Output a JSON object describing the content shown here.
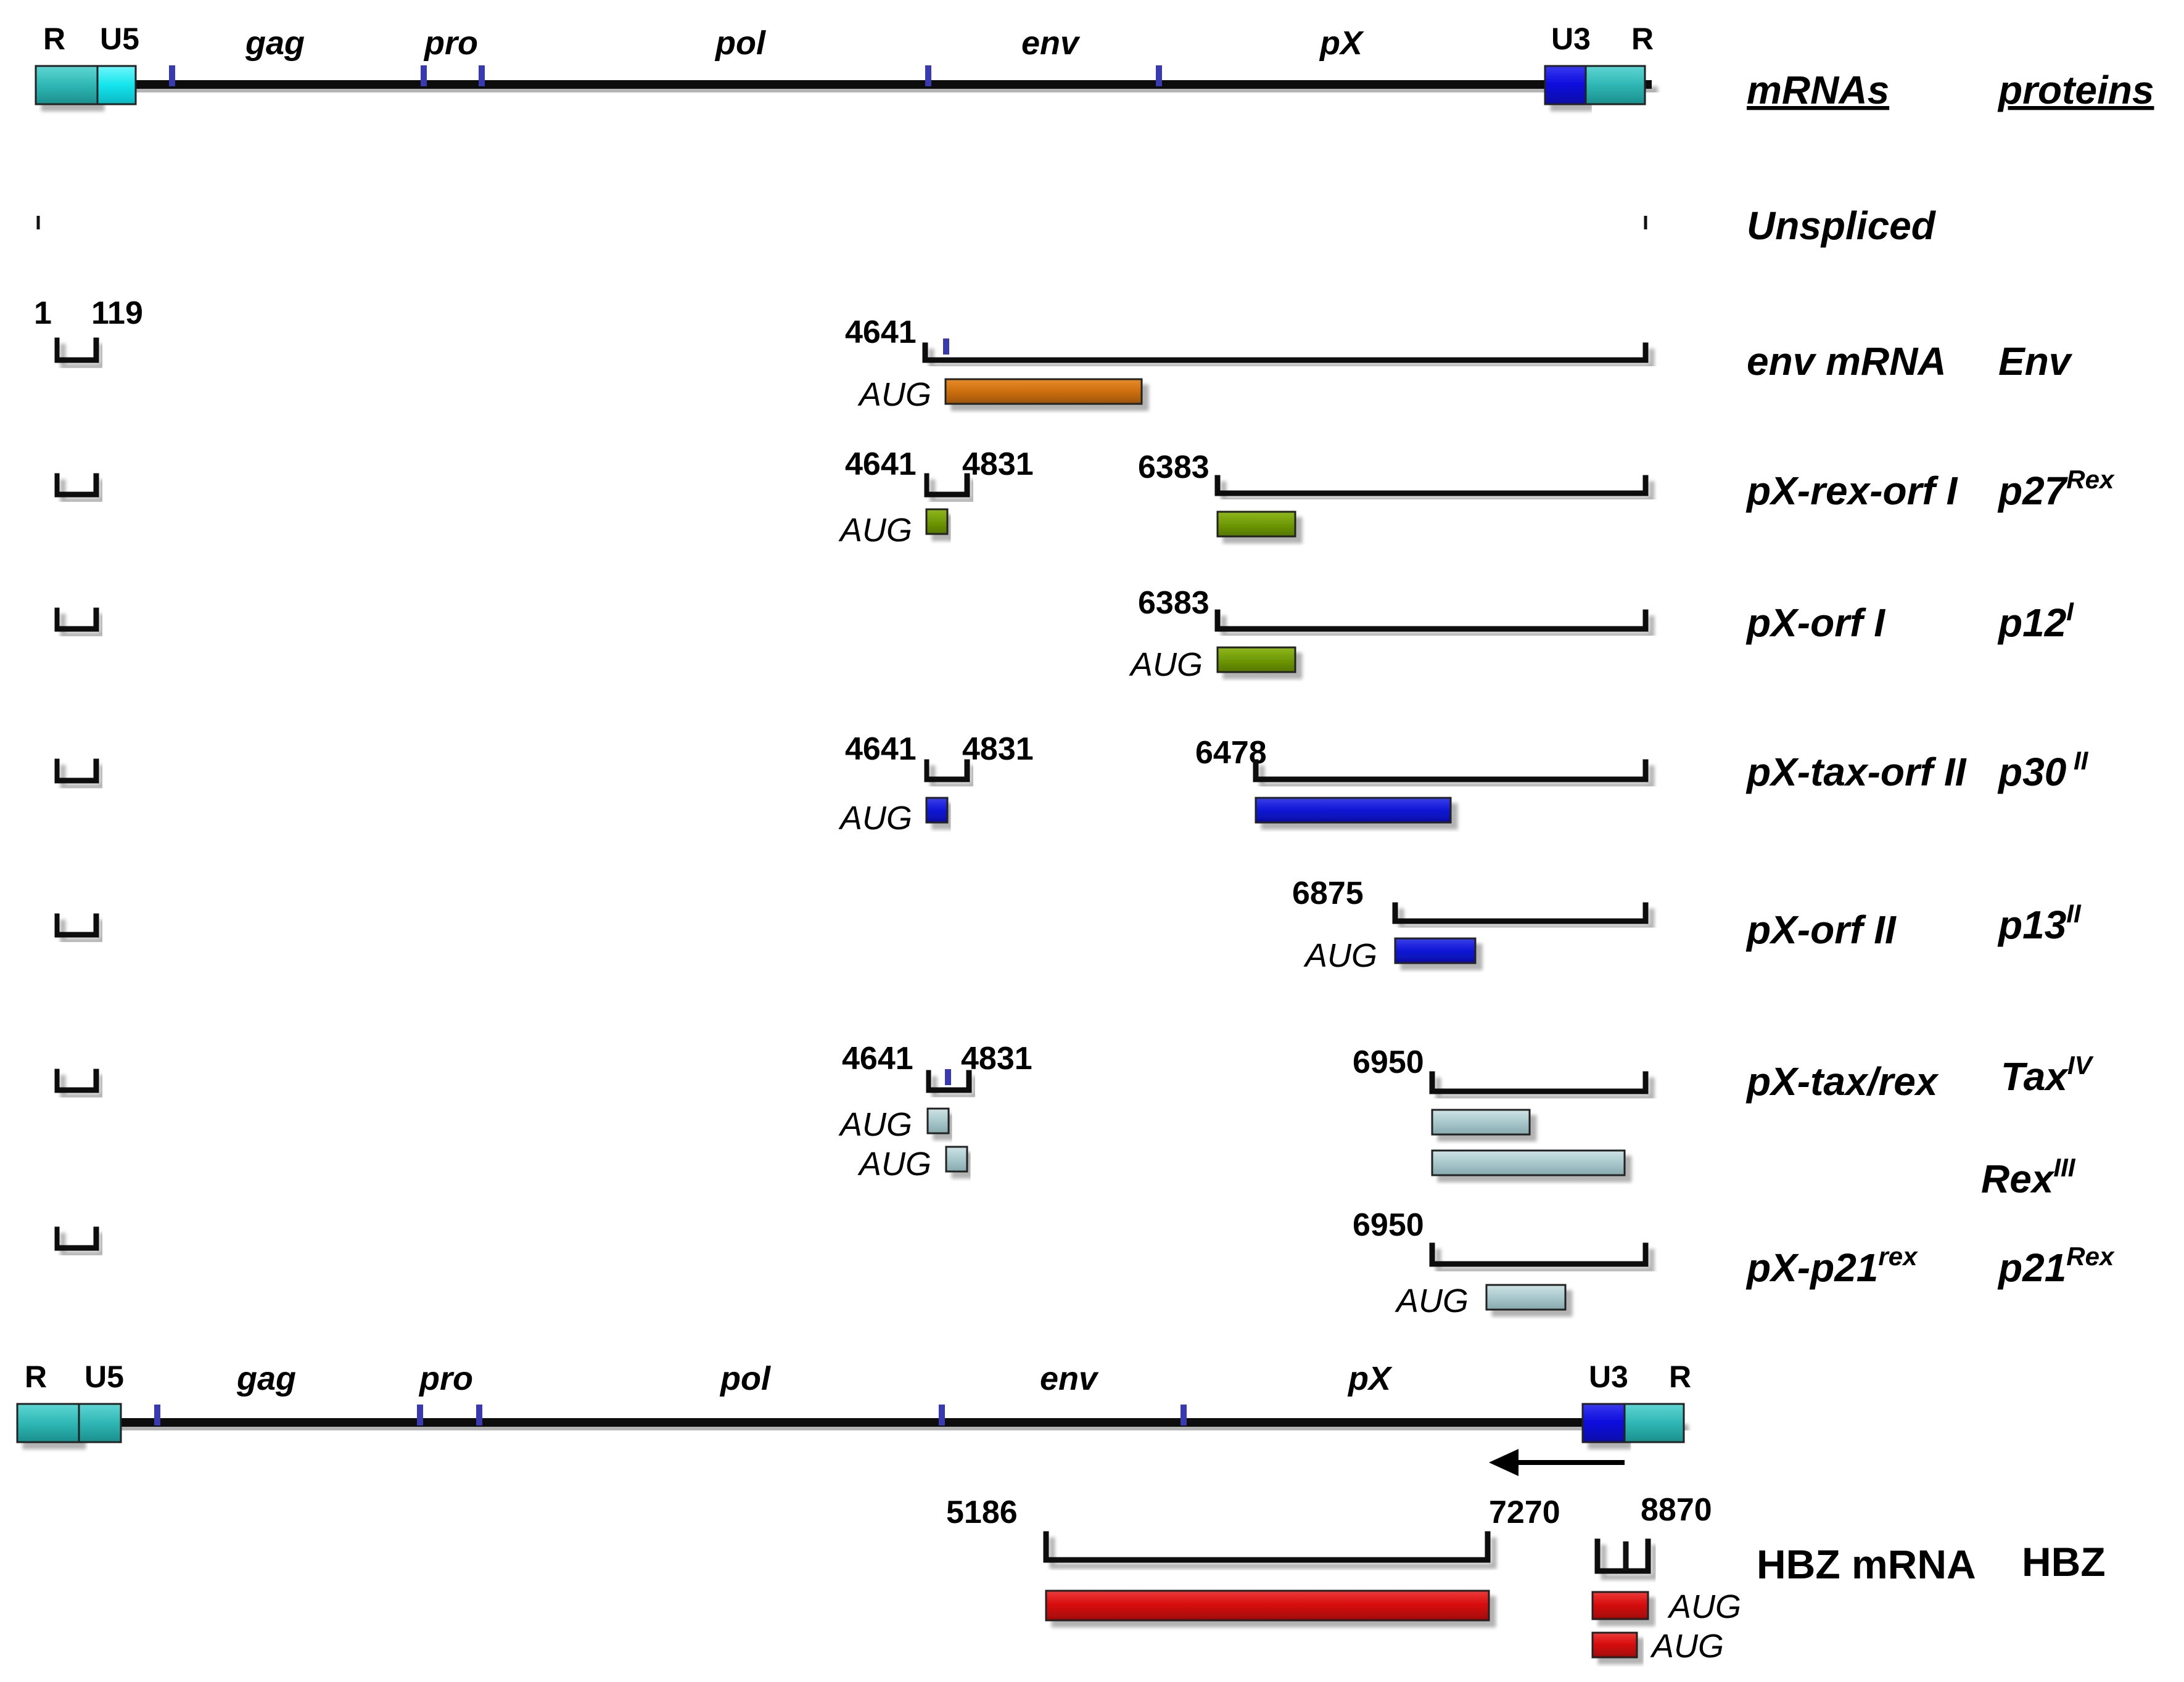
{
  "genome": {
    "ltr_left": [
      "R",
      "U5"
    ],
    "ltr_right": [
      "U3",
      "R"
    ],
    "genes": [
      "gag",
      "pro",
      "pol",
      "env",
      "pX"
    ]
  },
  "headers": {
    "mrnas": "mRNAs",
    "proteins": "proteins"
  },
  "unspliced": "Unspliced",
  "aug": "AUG",
  "pos": {
    "p1": "1",
    "p119": "119",
    "p4641": "4641",
    "p4831": "4831",
    "p6383": "6383",
    "p6478": "6478",
    "p6875": "6875",
    "p6950": "6950",
    "p5186": "5186",
    "p7270": "7270",
    "p8870": "8870"
  },
  "rows": {
    "env": {
      "mrna": "env mRNA",
      "protein": "Env",
      "sup": ""
    },
    "rexI": {
      "mrna": "pX-rex-orf I",
      "protein": "p27",
      "sup": "Rex"
    },
    "orfI": {
      "mrna": "pX-orf I",
      "protein": "p12",
      "sup": "I"
    },
    "taxII": {
      "mrna": "pX-tax-orf II",
      "protein": "p30",
      "sup": " II"
    },
    "orfII": {
      "mrna": "pX-orf II",
      "protein": "p13",
      "sup": "II"
    },
    "taxrex": {
      "mrna": "pX-tax/rex",
      "protein": "Tax",
      "sup": "IV",
      "protein2": "Rex",
      "sup2": "III"
    },
    "p21": {
      "mrna": "pX-p21",
      "mrna_sup": "rex",
      "protein": "p21",
      "sup": "Rex"
    },
    "hbz": {
      "mrna": "HBZ mRNA",
      "protein": "HBZ"
    }
  },
  "colors": {
    "ltr_teal": "#2fb7b5",
    "u5_cyan": "#14e4ec",
    "u3_blue": "#0a0adc",
    "env_orange": "#cc6f0c",
    "green": "#6f9a06",
    "blue": "#1016d4",
    "grayblue": "#a8c8cc",
    "red": "#d40a0a",
    "marker": "#3a3ab0"
  }
}
